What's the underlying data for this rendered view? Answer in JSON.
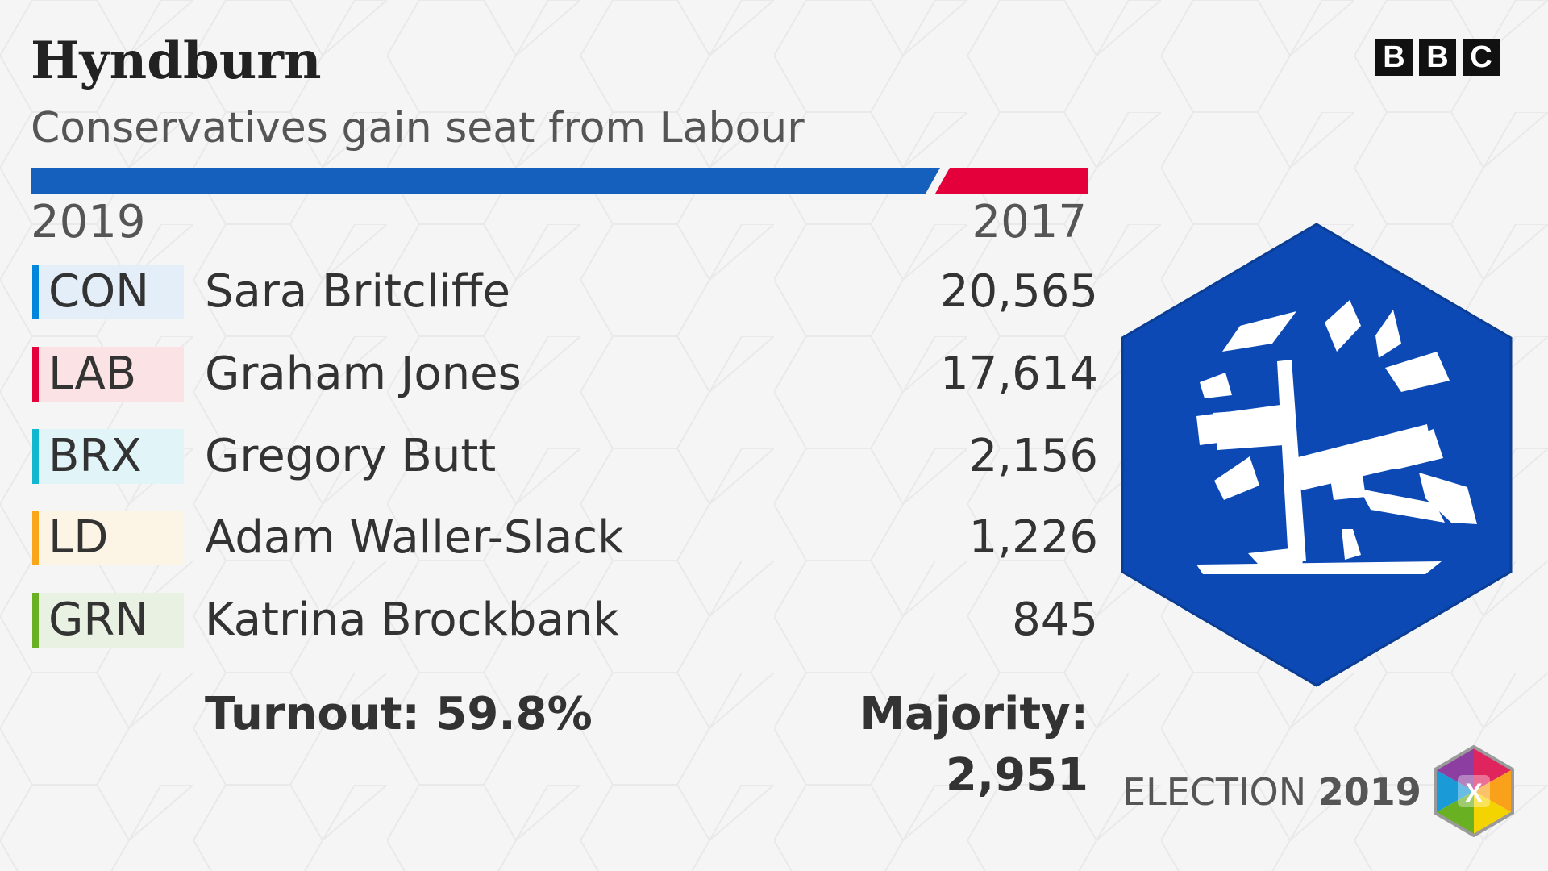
{
  "header": {
    "title": "Hyndburn",
    "subtitle": "Conservatives gain seat from Labour"
  },
  "brand": {
    "letters": [
      "B",
      "B",
      "C"
    ]
  },
  "swing": {
    "winner_color": "#1560bd",
    "previous_color": "#e4003b"
  },
  "years": {
    "current": "2019",
    "previous": "2017"
  },
  "results": [
    {
      "party": "CON",
      "candidate": "Sara Britcliffe",
      "votes": "20,565",
      "color": "#0087dc",
      "tint": "#e3eef8"
    },
    {
      "party": "LAB",
      "candidate": "Graham Jones",
      "votes": "17,614",
      "color": "#e4003b",
      "tint": "#fbe3e5"
    },
    {
      "party": "BRX",
      "candidate": "Gregory Butt",
      "votes": "2,156",
      "color": "#12b6cf",
      "tint": "#e1f4f8"
    },
    {
      "party": "LD",
      "candidate": "Adam Waller-Slack",
      "votes": "1,226",
      "color": "#faa61a",
      "tint": "#fcf4e4"
    },
    {
      "party": "GRN",
      "candidate": "Katrina Brockbank",
      "votes": "845",
      "color": "#6ab023",
      "tint": "#e9f2e2"
    }
  ],
  "summary": {
    "turnout": "Turnout: 59.8%",
    "majority": "Majority: 2,951"
  },
  "footer": {
    "election_label": "ELECTION",
    "election_year": "2019",
    "icon": "x-ballot-icon"
  },
  "logo": {
    "icon": "conservative-tree-icon",
    "hex_color": "#0c49b4"
  }
}
